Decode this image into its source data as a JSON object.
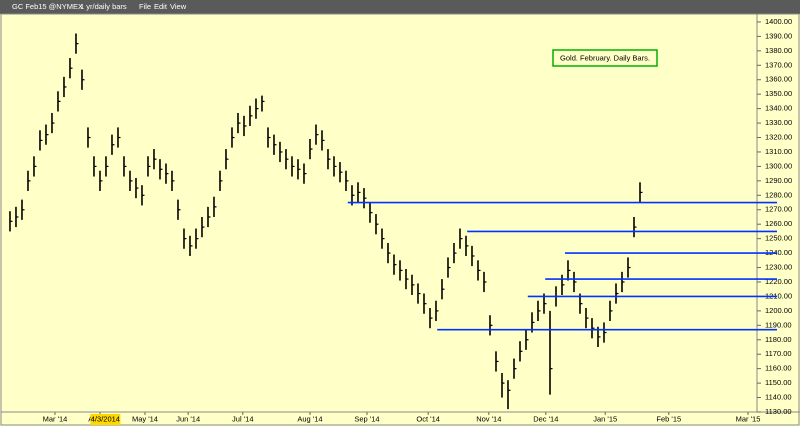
{
  "toolbar": {
    "symbol": "GC Feb15 @NYMEX",
    "period": "1 yr/daily bars",
    "menus": [
      "File",
      "Edit",
      "View"
    ]
  },
  "chart_data": {
    "type": "ohlc",
    "annotation": "Gold. February. Daily Bars.",
    "cursor_label": "4/3/2014",
    "color": "#000000",
    "line_color": "#0033ff",
    "high": [
      1269,
      1272,
      1277,
      1297,
      1307,
      1325,
      1329,
      1337,
      1352,
      1362,
      1375,
      1392,
      1367,
      1327,
      1307,
      1297,
      1307,
      1322,
      1327,
      1307,
      1297,
      1292,
      1287,
      1307,
      1312,
      1305,
      1302,
      1297,
      1277,
      1257,
      1252,
      1257,
      1265,
      1272,
      1279,
      1297,
      1312,
      1327,
      1337,
      1335,
      1342,
      1347,
      1349,
      1327,
      1322,
      1317,
      1312,
      1307,
      1305,
      1302,
      1319,
      1329,
      1325,
      1312,
      1307,
      1303,
      1297,
      1287,
      1289,
      1285,
      1275,
      1267,
      1257,
      1247,
      1239,
      1235,
      1229,
      1225,
      1219,
      1212,
      1202,
      1207,
      1222,
      1237,
      1247,
      1257,
      1252,
      1245,
      1235,
      1227,
      1197,
      1172,
      1157,
      1152,
      1167,
      1179,
      1187,
      1199,
      1207,
      1212,
      1200,
      1217,
      1225,
      1235,
      1227,
      1212,
      1202,
      1195,
      1189,
      1192,
      1207,
      1219,
      1227,
      1237,
      1265,
      1289
    ],
    "low": [
      1255,
      1258,
      1263,
      1283,
      1293,
      1311,
      1315,
      1323,
      1338,
      1348,
      1361,
      1378,
      1353,
      1313,
      1293,
      1283,
      1293,
      1308,
      1313,
      1293,
      1283,
      1278,
      1273,
      1293,
      1298,
      1291,
      1288,
      1283,
      1263,
      1243,
      1238,
      1243,
      1251,
      1258,
      1265,
      1283,
      1298,
      1313,
      1323,
      1321,
      1328,
      1333,
      1338,
      1313,
      1308,
      1303,
      1298,
      1293,
      1291,
      1288,
      1305,
      1315,
      1311,
      1298,
      1293,
      1289,
      1283,
      1273,
      1275,
      1271,
      1261,
      1253,
      1243,
      1233,
      1225,
      1221,
      1215,
      1211,
      1205,
      1198,
      1188,
      1193,
      1208,
      1223,
      1233,
      1243,
      1238,
      1231,
      1221,
      1213,
      1183,
      1158,
      1140,
      1132,
      1153,
      1165,
      1173,
      1185,
      1193,
      1198,
      1142,
      1203,
      1211,
      1221,
      1213,
      1198,
      1188,
      1181,
      1175,
      1178,
      1193,
      1205,
      1213,
      1223,
      1251,
      1275
    ],
    "close": [
      1262,
      1265,
      1270,
      1290,
      1300,
      1318,
      1322,
      1330,
      1345,
      1355,
      1368,
      1385,
      1360,
      1320,
      1300,
      1290,
      1300,
      1315,
      1320,
      1300,
      1290,
      1285,
      1280,
      1300,
      1305,
      1298,
      1295,
      1290,
      1270,
      1250,
      1245,
      1250,
      1258,
      1265,
      1272,
      1290,
      1305,
      1320,
      1330,
      1328,
      1335,
      1340,
      1345,
      1320,
      1315,
      1310,
      1305,
      1300,
      1298,
      1295,
      1312,
      1322,
      1318,
      1305,
      1300,
      1296,
      1290,
      1280,
      1282,
      1278,
      1268,
      1260,
      1250,
      1240,
      1232,
      1228,
      1222,
      1218,
      1212,
      1205,
      1195,
      1200,
      1215,
      1230,
      1240,
      1250,
      1245,
      1238,
      1228,
      1220,
      1190,
      1165,
      1150,
      1145,
      1160,
      1172,
      1180,
      1192,
      1200,
      1205,
      1160,
      1210,
      1218,
      1228,
      1220,
      1205,
      1195,
      1188,
      1182,
      1185,
      1200,
      1212,
      1220,
      1230,
      1258,
      1282
    ],
    "support_lines": [
      {
        "y": 1275,
        "x_start": 56.3
      },
      {
        "y": 1255,
        "x_start": 76.2
      },
      {
        "y": 1240,
        "x_start": 92.5
      },
      {
        "y": 1222,
        "x_start": 89.2
      },
      {
        "y": 1210,
        "x_start": 86.3
      },
      {
        "y": 1187,
        "x_start": 71.2
      }
    ],
    "xlim": [
      -0.33,
      124.5
    ],
    "ylim": [
      1130,
      1405.5
    ],
    "xticks": [
      {
        "value": 7.5,
        "label": "Mar '14"
      },
      {
        "value": 15,
        "label": "Apr '14"
      },
      {
        "value": 22.5,
        "label": "May '14"
      },
      {
        "value": 29.7,
        "label": "Jun '14"
      },
      {
        "value": 38.8,
        "label": "Jul '14"
      },
      {
        "value": 50,
        "label": "Aug '14"
      },
      {
        "value": 59.5,
        "label": "Sep '14"
      },
      {
        "value": 69.7,
        "label": "Oct '14"
      },
      {
        "value": 79.8,
        "label": "Nov '14"
      },
      {
        "value": 89.3,
        "label": "Dec '14"
      },
      {
        "value": 99.2,
        "label": "Jan '15"
      },
      {
        "value": 109.8,
        "label": "Feb '15"
      },
      {
        "value": 123,
        "label": "Mar '15"
      }
    ],
    "cursor_x": 15.9,
    "yticks": [
      {
        "value": 1130,
        "label": "1130.00"
      },
      {
        "value": 1140,
        "label": "1140.00"
      },
      {
        "value": 1150,
        "label": "1150.00"
      },
      {
        "value": 1160,
        "label": "1160.00"
      },
      {
        "value": 1170,
        "label": "1170.00"
      },
      {
        "value": 1180,
        "label": "1180.00"
      },
      {
        "value": 1190,
        "label": "1190.00"
      },
      {
        "value": 1200,
        "label": "1200.00"
      },
      {
        "value": 1210,
        "label": "1210.00"
      },
      {
        "value": 1220,
        "label": "1220.00"
      },
      {
        "value": 1230,
        "label": "1230.00"
      },
      {
        "value": 1240,
        "label": "1240.00"
      },
      {
        "value": 1250,
        "label": "1250.00"
      },
      {
        "value": 1260,
        "label": "1260.00"
      },
      {
        "value": 1270,
        "label": "1270.00"
      },
      {
        "value": 1280,
        "label": "1280.00"
      },
      {
        "value": 1290,
        "label": "1290.00"
      },
      {
        "value": 1300,
        "label": "1300.00"
      },
      {
        "value": 1310,
        "label": "1310.00"
      },
      {
        "value": 1320,
        "label": "1320.00"
      },
      {
        "value": 1330,
        "label": "1330.00"
      },
      {
        "value": 1340,
        "label": "1340.00"
      },
      {
        "value": 1350,
        "label": "1350.00"
      },
      {
        "value": 1360,
        "label": "1360.00"
      },
      {
        "value": 1370,
        "label": "1370.00"
      },
      {
        "value": 1380,
        "label": "1380.00"
      },
      {
        "value": 1390,
        "label": "1390.00"
      },
      {
        "value": 1400,
        "label": "1400.00"
      }
    ]
  }
}
